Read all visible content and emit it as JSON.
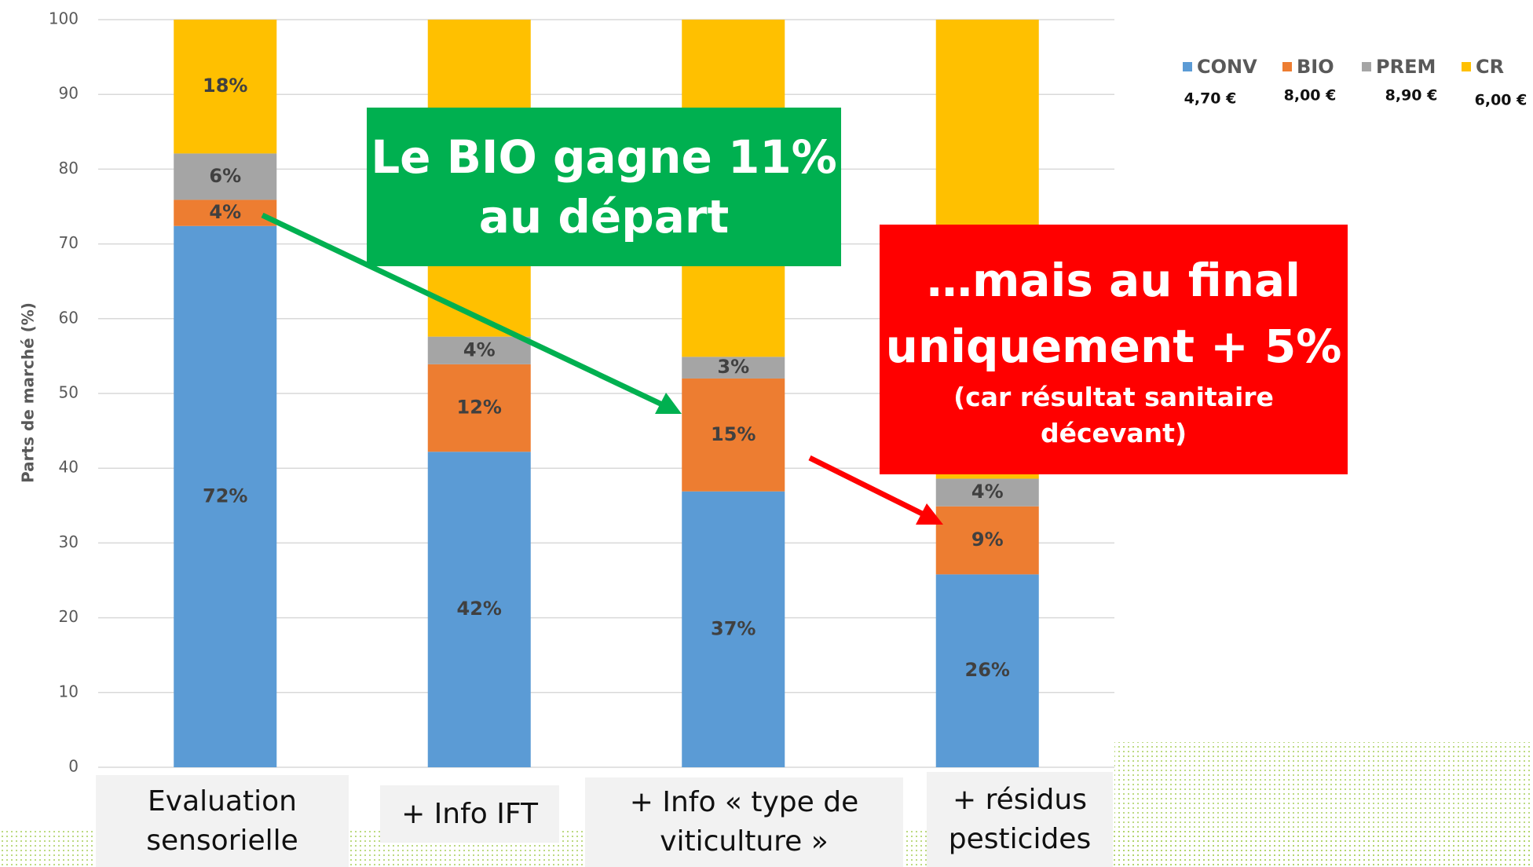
{
  "chart_data": {
    "type": "stacked_bar",
    "y_label": "Parts de marché (%)",
    "categories": [
      "Evaluation sensorielle",
      "+ Info IFT",
      "+ Info « type de viticulture »",
      "+ résidus pesticides"
    ],
    "series": [
      {
        "name": "CONV",
        "price": "4,70 €",
        "color": "#5b9bd5",
        "values": [
          72.4,
          42.2,
          36.9,
          25.8
        ],
        "value_labels": [
          "72%",
          "42%",
          "37%",
          "26%"
        ]
      },
      {
        "name": "BIO",
        "price": "8,00 €",
        "color": "#ed7d31",
        "values": [
          3.5,
          11.7,
          15.1,
          9.1
        ],
        "value_labels": [
          "4%",
          "12%",
          "15%",
          "9%"
        ]
      },
      {
        "name": "PREM",
        "price": "8,90 €",
        "color": "#a5a5a5",
        "values": [
          6.2,
          3.7,
          2.9,
          3.7
        ],
        "value_labels": [
          "6%",
          "4%",
          "3%",
          "4%"
        ]
      },
      {
        "name": "CR",
        "price": "6,00 €",
        "color": "#ffc000",
        "values": [
          17.9,
          42.4,
          45.1,
          61.4
        ],
        "value_labels": [
          "18%",
          null,
          null,
          null
        ]
      }
    ],
    "ylim": [
      0,
      100
    ],
    "yticks": [
      0,
      10,
      20,
      30,
      40,
      50,
      60,
      70,
      80,
      90,
      100
    ],
    "grid": true,
    "legend": "top-right",
    "annotations": [
      {
        "color": "#00b050",
        "lines": [
          "Le BIO gagne 11%",
          "au départ"
        ]
      },
      {
        "color": "#ff0000",
        "lines": [
          "…mais au final",
          "uniquement + 5%"
        ],
        "note_lines": [
          "(car résultat sanitaire",
          "décevant)"
        ]
      }
    ]
  }
}
